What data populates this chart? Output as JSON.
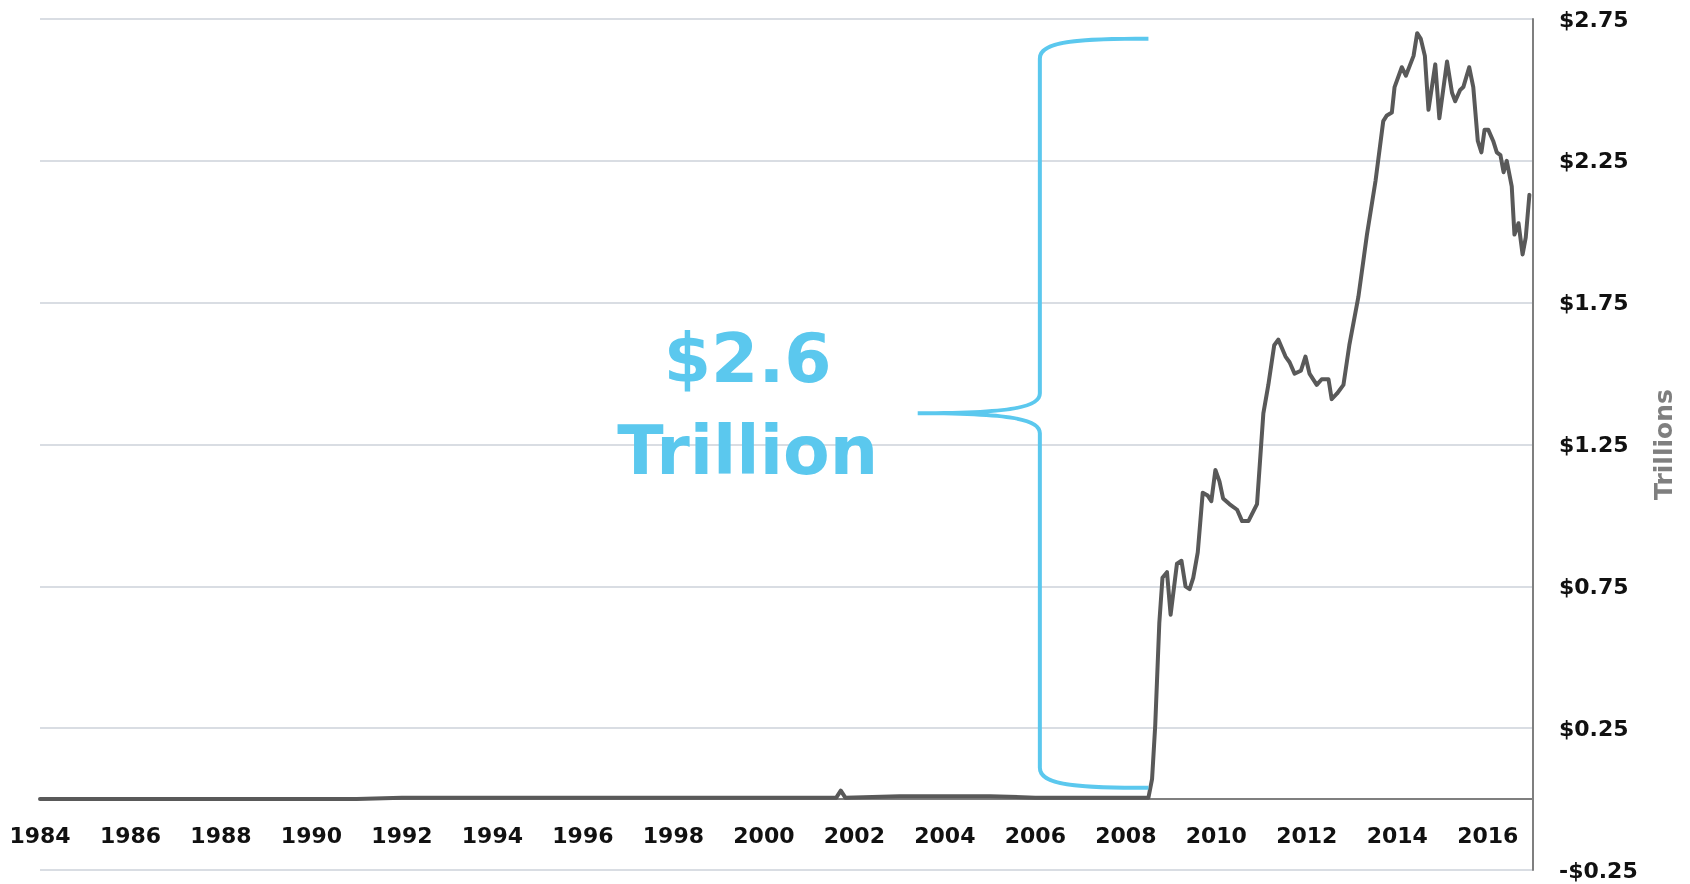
{
  "chart_data": {
    "type": "line",
    "ylabel": "Trillions",
    "annotations": [
      "$2.6 Trillion"
    ],
    "xlim": [
      1984,
      2017
    ],
    "xticks": [
      1984,
      1986,
      1988,
      1990,
      1992,
      1994,
      1996,
      1998,
      2000,
      2002,
      2004,
      2006,
      2008,
      2010,
      2012,
      2014,
      2016
    ],
    "ylim": [
      -0.25,
      2.75
    ],
    "yticks": [
      {
        "value": -0.25,
        "label": "-$0.25"
      },
      {
        "value": 0.25,
        "label": "$0.25"
      },
      {
        "value": 0.75,
        "label": "$0.75"
      },
      {
        "value": 1.25,
        "label": "$1.25"
      },
      {
        "value": 1.75,
        "label": "$1.75"
      },
      {
        "value": 2.25,
        "label": "$2.25"
      },
      {
        "value": 2.75,
        "label": "$2.75"
      }
    ],
    "grid": "y",
    "marker": "none",
    "line_style": "solid",
    "series": [
      {
        "color": "#595959",
        "x": [
          1984,
          1991,
          1992,
          1996,
          2001.6,
          2001.7,
          2001.8,
          2003,
          2005,
          2006,
          2008.5,
          2008.58,
          2008.65,
          2008.74,
          2008.81,
          2008.91,
          2008.99,
          2009.13,
          2009.23,
          2009.32,
          2009.41,
          2009.49,
          2009.59,
          2009.7,
          2009.81,
          2009.89,
          2009.98,
          2010.07,
          2010.15,
          2010.29,
          2010.46,
          2010.57,
          2010.71,
          2010.9,
          2011.04,
          2011.15,
          2011.28,
          2011.37,
          2011.53,
          2011.62,
          2011.73,
          2011.87,
          2011.97,
          2012.06,
          2012.22,
          2012.33,
          2012.48,
          2012.55,
          2012.67,
          2012.81,
          2012.94,
          2013.14,
          2013.33,
          2013.52,
          2013.69,
          2013.77,
          2013.88,
          2013.94,
          2014.1,
          2014.19,
          2014.36,
          2014.44,
          2014.52,
          2014.61,
          2014.69,
          2014.84,
          2014.93,
          2015.1,
          2015.21,
          2015.28,
          2015.39,
          2015.46,
          2015.59,
          2015.68,
          2015.78,
          2015.86,
          2015.93,
          2016.01,
          2016.12,
          2016.2,
          2016.28,
          2016.35,
          2016.42,
          2016.53,
          2016.59,
          2016.68,
          2016.77,
          2016.84,
          2016.92
        ],
        "values": [
          0,
          0,
          0.005,
          0.005,
          0.005,
          0.03,
          0.005,
          0.01,
          0.01,
          0.005,
          0.005,
          0.07,
          0.26,
          0.62,
          0.78,
          0.8,
          0.65,
          0.83,
          0.84,
          0.75,
          0.74,
          0.78,
          0.87,
          1.08,
          1.07,
          1.05,
          1.16,
          1.12,
          1.06,
          1.04,
          1.02,
          0.98,
          0.98,
          1.04,
          1.36,
          1.46,
          1.6,
          1.62,
          1.56,
          1.54,
          1.5,
          1.51,
          1.56,
          1.5,
          1.46,
          1.48,
          1.48,
          1.41,
          1.43,
          1.46,
          1.6,
          1.77,
          1.99,
          2.18,
          2.39,
          2.41,
          2.42,
          2.51,
          2.58,
          2.55,
          2.62,
          2.7,
          2.68,
          2.62,
          2.43,
          2.59,
          2.4,
          2.6,
          2.49,
          2.46,
          2.5,
          2.51,
          2.58,
          2.51,
          2.32,
          2.28,
          2.36,
          2.36,
          2.32,
          2.28,
          2.27,
          2.21,
          2.25,
          2.16,
          1.99,
          2.03,
          1.92,
          1.98,
          2.13
        ]
      }
    ]
  }
}
